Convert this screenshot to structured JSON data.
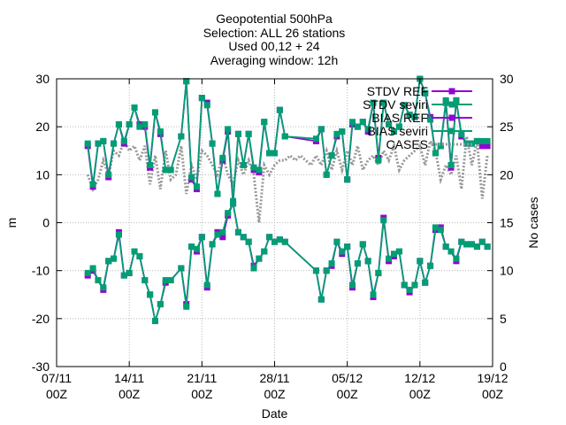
{
  "chart_data": {
    "type": "line",
    "title_lines": [
      "Geopotential 500hPa",
      "Selection: ALL      26 stations",
      "Used 00,12 + 24",
      "Averaging window: 12h"
    ],
    "xlabel": "Date",
    "ylabel": "m",
    "y2label": "No cases",
    "x_ticks": [
      {
        "day": 0,
        "line1": "07/11",
        "line2": "00Z"
      },
      {
        "day": 7,
        "line1": "14/11",
        "line2": "00Z"
      },
      {
        "day": 14,
        "line1": "21/11",
        "line2": "00Z"
      },
      {
        "day": 21,
        "line1": "28/11",
        "line2": "00Z"
      },
      {
        "day": 28,
        "line1": "05/12",
        "line2": "00Z"
      },
      {
        "day": 35,
        "line1": "12/12",
        "line2": "00Z"
      },
      {
        "day": 42,
        "line1": "19/12",
        "line2": "00Z"
      }
    ],
    "x_unit_note": "x values are days since 07/11 00Z",
    "xlim": [
      0,
      42
    ],
    "ylim": [
      -30,
      30
    ],
    "y_ticks": [
      -30,
      -20,
      -10,
      0,
      10,
      20,
      30
    ],
    "y2lim": [
      0,
      30
    ],
    "y2_ticks": [
      0,
      5,
      10,
      15,
      20,
      25,
      30
    ],
    "grid": true,
    "legend_position": "top-right",
    "series": [
      {
        "name": "STDV REF",
        "axis": "y",
        "color": "#9400d3",
        "marker": "square",
        "x": [
          3,
          3.5,
          4,
          4.5,
          5,
          5.5,
          6,
          6.5,
          7,
          7.5,
          8,
          8.5,
          9,
          9.5,
          10,
          10.5,
          11,
          12,
          12.5,
          13,
          13.5,
          14,
          14.5,
          15,
          15.5,
          16,
          16.5,
          17,
          17.5,
          18,
          18.5,
          19,
          19.5,
          20,
          20.5,
          21,
          21.5,
          22,
          25,
          25.5,
          26,
          26.5,
          27,
          27.5,
          28,
          28.5,
          29,
          29.5,
          30,
          30.5,
          31,
          31.5,
          32,
          32.5,
          33,
          33.5,
          34,
          34.5,
          35,
          35.5,
          36,
          36.5,
          37,
          37.5,
          38,
          38.5,
          39,
          39.5,
          40,
          40.5,
          41,
          41.5
        ],
        "y": [
          16,
          7.5,
          16.5,
          17,
          9.5,
          16.5,
          20.5,
          16.5,
          20.5,
          24,
          20.5,
          20,
          11.5,
          23,
          18.5,
          11,
          11,
          18,
          29.5,
          9,
          7,
          26,
          25,
          16.5,
          6,
          13,
          19,
          4,
          18.5,
          12,
          18.5,
          11,
          10.5,
          21,
          14.5,
          14.5,
          23.5,
          18,
          17,
          19.5,
          10,
          14,
          18,
          19,
          9,
          20.5,
          20,
          21,
          19,
          25,
          13.5,
          25,
          20.5,
          19,
          20,
          24.5,
          22.5,
          22,
          30,
          27,
          22,
          14.5,
          16,
          25,
          11.5,
          25.5,
          18,
          16.5,
          16.5,
          17,
          16,
          16
        ]
      },
      {
        "name": "STDV seviri",
        "axis": "y",
        "color": "#009e73",
        "marker": "square",
        "x": [
          3,
          3.5,
          4,
          4.5,
          5,
          5.5,
          6,
          6.5,
          7,
          7.5,
          8,
          8.5,
          9,
          9.5,
          10,
          10.5,
          11,
          12,
          12.5,
          13,
          13.5,
          14,
          14.5,
          15,
          15.5,
          16,
          16.5,
          17,
          17.5,
          18,
          18.5,
          19,
          19.5,
          20,
          20.5,
          21,
          21.5,
          22,
          25,
          25.5,
          26,
          26.5,
          27,
          27.5,
          28,
          28.5,
          29,
          29.5,
          30,
          30.5,
          31,
          31.5,
          32,
          32.5,
          33,
          33.5,
          34,
          34.5,
          35,
          35.5,
          36,
          36.5,
          37,
          37.5,
          38,
          38.5,
          39,
          39.5,
          40,
          40.5,
          41,
          41.5
        ],
        "y": [
          16.5,
          8,
          16.5,
          17,
          10,
          16.5,
          20.5,
          17,
          20.5,
          24,
          20,
          20.5,
          12,
          23,
          19,
          11,
          11,
          18,
          29.5,
          9.5,
          7.5,
          26,
          24.5,
          16.5,
          6,
          13.5,
          19.5,
          4.5,
          18.5,
          12,
          18.5,
          11.5,
          11,
          21,
          14.5,
          14.5,
          23.5,
          18,
          17.5,
          19.5,
          10,
          14,
          18.5,
          19,
          9,
          21,
          20,
          21,
          19.5,
          25,
          13,
          25,
          20.5,
          19,
          20,
          24.5,
          22.5,
          22,
          30,
          27,
          21.5,
          14.5,
          16,
          25.5,
          12,
          25.5,
          18.5,
          16.5,
          16.5,
          17,
          17,
          17
        ]
      },
      {
        "name": "BIAS REF",
        "axis": "y",
        "color": "#9400d3",
        "marker": "square",
        "x": [
          3,
          3.5,
          4,
          4.5,
          5,
          5.5,
          6,
          6.5,
          7,
          7.5,
          8,
          8.5,
          9,
          9.5,
          10,
          10.5,
          11,
          12,
          12.5,
          13,
          13.5,
          14,
          14.5,
          15,
          15.5,
          16,
          16.5,
          17,
          17.5,
          18,
          18.5,
          19,
          19.5,
          20,
          20.5,
          21,
          21.5,
          22,
          25,
          25.5,
          26,
          26.5,
          27,
          27.5,
          28,
          28.5,
          29,
          29.5,
          30,
          30.5,
          31,
          31.5,
          32,
          32.5,
          33,
          33.5,
          34,
          34.5,
          35,
          35.5,
          36,
          36.5,
          37,
          37.5,
          38,
          38.5,
          39,
          39.5,
          40,
          40.5,
          41,
          41.5
        ],
        "y": [
          -11,
          -10,
          -12,
          -14,
          -8,
          -7.5,
          -2,
          -11,
          -10.5,
          -6,
          -7,
          -12,
          -15,
          -20.5,
          -17,
          -12.5,
          -12,
          -9.5,
          -17,
          -5,
          -6,
          -3,
          -13.5,
          -4.5,
          -2,
          -3,
          1.5,
          4,
          -2,
          -3,
          -4,
          -9,
          -7.5,
          -6,
          -3,
          -4,
          -3.5,
          -4,
          -10,
          -16,
          -10,
          -9,
          -4,
          -6.5,
          -5,
          -13.5,
          -8.5,
          -4.5,
          -8,
          -15.5,
          -10.5,
          1,
          -8,
          -7,
          -6,
          -13,
          -14.5,
          -13,
          -8,
          -12.5,
          -9,
          -1.5,
          -1,
          -5,
          -6,
          -8,
          -4,
          -4.5,
          -4.5,
          -5,
          -4,
          -5
        ]
      },
      {
        "name": "BIAS seviri",
        "axis": "y",
        "color": "#009e73",
        "marker": "square",
        "x": [
          3,
          3.5,
          4,
          4.5,
          5,
          5.5,
          6,
          6.5,
          7,
          7.5,
          8,
          8.5,
          9,
          9.5,
          10,
          10.5,
          11,
          12,
          12.5,
          13,
          13.5,
          14,
          14.5,
          15,
          15.5,
          16,
          16.5,
          17,
          17.5,
          18,
          18.5,
          19,
          19.5,
          20,
          20.5,
          21,
          21.5,
          22,
          25,
          25.5,
          26,
          26.5,
          27,
          27.5,
          28,
          28.5,
          29,
          29.5,
          30,
          30.5,
          31,
          31.5,
          32,
          32.5,
          33,
          33.5,
          34,
          34.5,
          35,
          35.5,
          36,
          36.5,
          37,
          37.5,
          38,
          38.5,
          39,
          39.5,
          40,
          40.5,
          41,
          41.5
        ],
        "y": [
          -10.5,
          -9.5,
          -12,
          -13.5,
          -8,
          -7.5,
          -2.5,
          -11,
          -10.5,
          -6,
          -7,
          -12,
          -15,
          -20.5,
          -17,
          -12,
          -12,
          -9.5,
          -17.5,
          -5,
          -5.5,
          -3,
          -13,
          -4.5,
          -2.5,
          -2,
          2,
          4,
          -2,
          -3,
          -4,
          -9.5,
          -7.5,
          -6,
          -3,
          -4,
          -3.5,
          -4,
          -10,
          -16,
          -10,
          -8.5,
          -4,
          -6,
          -5,
          -13,
          -8.5,
          -4.5,
          -8,
          -15,
          -10.5,
          0.5,
          -7.5,
          -6.5,
          -6,
          -13,
          -14,
          -13,
          -8,
          -12.5,
          -9,
          -1,
          -1.5,
          -5,
          -6,
          -7.5,
          -4,
          -4.5,
          -4.5,
          -5,
          -4,
          -5
        ]
      },
      {
        "name": "CASES",
        "axis": "y2",
        "color": "#999999",
        "style": "dotted",
        "x": [
          3,
          3.5,
          4,
          4.5,
          5,
          5.5,
          6,
          6.5,
          7,
          7.5,
          8,
          8.5,
          9,
          9.5,
          10,
          10.5,
          11,
          11.5,
          12,
          12.5,
          13,
          13.5,
          14,
          14.5,
          15,
          15.5,
          16,
          16.5,
          17,
          17.5,
          18,
          18.5,
          19,
          19.5,
          20,
          20.5,
          21,
          21.5,
          22,
          22.5,
          23,
          23.5,
          24,
          24.5,
          25,
          25.5,
          26,
          26.5,
          27,
          27.5,
          28,
          28.5,
          29,
          29.5,
          30,
          30.5,
          31,
          31.5,
          32,
          32.5,
          33,
          33.5,
          34,
          34.5,
          35,
          35.5,
          36,
          36.5,
          37,
          37.5,
          38,
          38.5,
          39,
          39.5,
          40,
          40.5,
          41,
          41.5
        ],
        "y": [
          20,
          18.5,
          19.5,
          21.5,
          20,
          22.5,
          22,
          23.5,
          22.5,
          23,
          21.5,
          23,
          19,
          22,
          18.5,
          22.5,
          19.5,
          20,
          23,
          18,
          21,
          19.5,
          22.5,
          22,
          21,
          20,
          22,
          20,
          19,
          21.5,
          20,
          21.5,
          20,
          15,
          21,
          20,
          21,
          21.5,
          21.5,
          22,
          21.5,
          22,
          21.5,
          21,
          22,
          21,
          22.5,
          20.5,
          22.5,
          20.5,
          22.5,
          21,
          23,
          20.5,
          21.5,
          22,
          21,
          22.5,
          21.5,
          23,
          20.5,
          21.5,
          22,
          22.5,
          23,
          21,
          23.5,
          22.5,
          19.5,
          21,
          20,
          22,
          18.5,
          24,
          21,
          23.5,
          17.5,
          22
        ]
      }
    ]
  }
}
